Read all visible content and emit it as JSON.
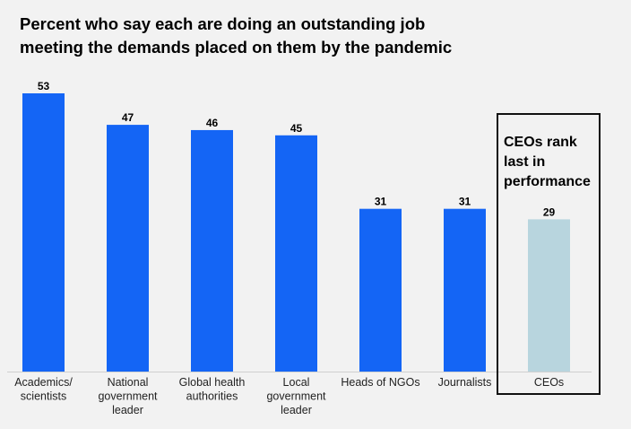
{
  "title_lines": [
    "Percent who say each are doing an outstanding job",
    "meeting the demands placed on them by the pandemic"
  ],
  "callout_lines": [
    "CEOs rank",
    "last in",
    "performance"
  ],
  "colors": {
    "bar": "#1465f5",
    "highlight": "#b8d5de",
    "axis": "#d0d0d0"
  },
  "chart_data": {
    "type": "bar",
    "title": "Percent who say each are doing an outstanding job meeting the demands placed on them by the pandemic",
    "categories": [
      [
        "Academics/",
        "scientists"
      ],
      [
        "National",
        "government",
        "leader"
      ],
      [
        "Global health",
        "authorities"
      ],
      [
        "Local",
        "government",
        "leader"
      ],
      [
        "Heads of NGOs"
      ],
      [
        "Journalists"
      ],
      [
        "CEOs"
      ]
    ],
    "values": [
      53,
      47,
      46,
      45,
      31,
      31,
      29
    ],
    "highlighted_category_index": 6,
    "ylim": [
      0,
      53
    ],
    "grid": false
  }
}
